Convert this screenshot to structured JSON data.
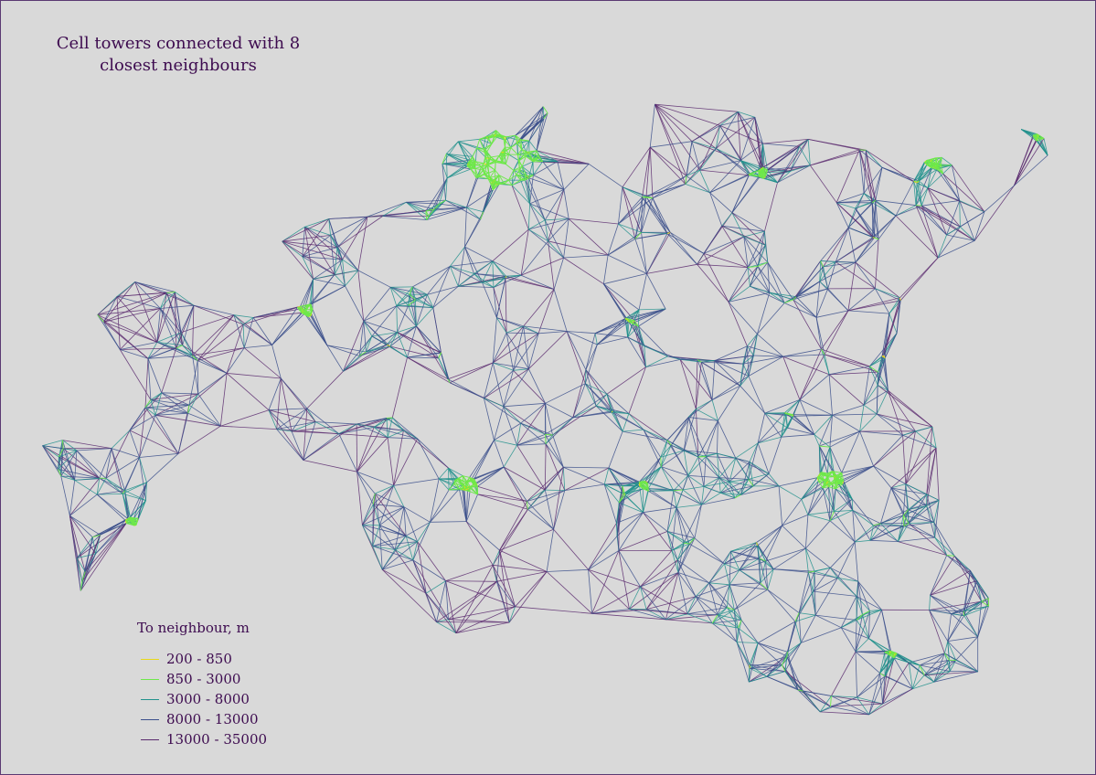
{
  "title": "Cell towers connected with 8 closest neighbours",
  "legend": {
    "title": "To neighbour, m",
    "items": [
      {
        "label": "200 - 850",
        "color": "#e8d81a"
      },
      {
        "label": "850 - 3000",
        "color": "#6ee84a"
      },
      {
        "label": "3000 - 8000",
        "color": "#21918c"
      },
      {
        "label": "8000 - 13000",
        "color": "#3b4f8b"
      },
      {
        "label": "13000 - 35000",
        "color": "#5a2a6e"
      }
    ]
  }
}
